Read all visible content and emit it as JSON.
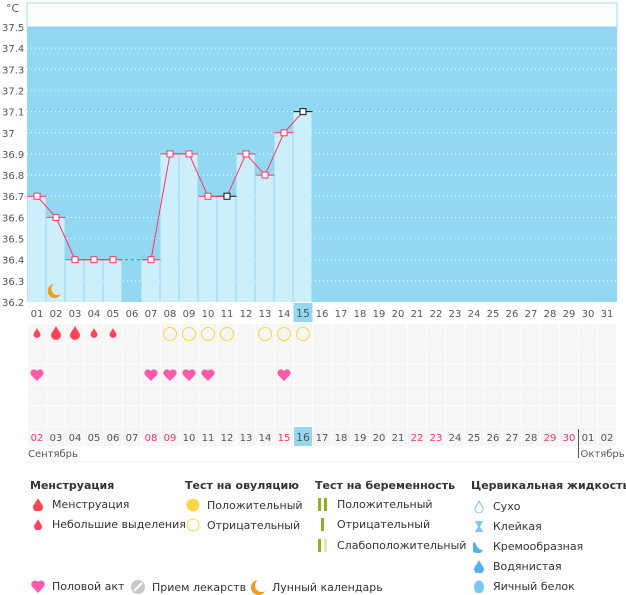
{
  "unit": "°C",
  "y_ticks": [
    "37.5",
    "37.4",
    "37.3",
    "37.2",
    "37.1",
    "37",
    "36.9",
    "36.8",
    "36.7",
    "36.6",
    "36.5",
    "36.4",
    "36.3",
    "36.2"
  ],
  "cycle_days": [
    "01",
    "02",
    "03",
    "04",
    "05",
    "06",
    "07",
    "08",
    "09",
    "10",
    "11",
    "12",
    "13",
    "14",
    "15",
    "16",
    "17",
    "18",
    "19",
    "20",
    "21",
    "22",
    "23",
    "24",
    "25",
    "26",
    "27",
    "28",
    "29",
    "30",
    "31"
  ],
  "current_cycle_day": "15",
  "temperatures": [
    36.7,
    36.6,
    36.4,
    36.4,
    36.4,
    null,
    36.4,
    36.9,
    36.9,
    36.7,
    36.7,
    36.9,
    36.8,
    37.0,
    37.1
  ],
  "black_markers_days": [
    11,
    15
  ],
  "moon_days": [
    2
  ],
  "menstruation": {
    "2": "heavy",
    "3": "heavy",
    "1": "light",
    "4": "light",
    "5": "light"
  },
  "ovulation_negative_days": [
    8,
    9,
    10,
    11,
    13,
    14,
    15
  ],
  "intercourse_days": [
    1,
    7,
    8,
    9,
    10,
    14
  ],
  "dates": [
    "02",
    "03",
    "04",
    "05",
    "06",
    "07",
    "08",
    "09",
    "10",
    "11",
    "12",
    "13",
    "14",
    "15",
    "16",
    "17",
    "18",
    "19",
    "20",
    "21",
    "22",
    "23",
    "24",
    "25",
    "26",
    "27",
    "28",
    "29",
    "30",
    "01",
    "02"
  ],
  "weekend_date_indexes": [
    0,
    6,
    7,
    13,
    20,
    21,
    27,
    28
  ],
  "today_date": "16",
  "months": [
    "Сентябрь",
    "Октябрь"
  ],
  "colors": {
    "plot_bg": "#93d8f2",
    "bar": "#cdeefb",
    "line": "#ff3366",
    "blood": "#ff4455",
    "heart": "#ff5aaa",
    "ovulation": "#ffd23f",
    "test_green": "#8cb31f"
  },
  "legend": {
    "menstruation": {
      "title": "Менструация",
      "items": [
        "Менструация",
        "Небольшие выделения"
      ]
    },
    "ovulation": {
      "title": "Тест на овуляцию",
      "items": [
        "Положительный",
        "Отрицательный"
      ]
    },
    "pregnancy": {
      "title": "Тест на беременность",
      "items": [
        "Положительный",
        "Отрицательный",
        "Слабоположительный"
      ]
    },
    "cervical": {
      "title": "Цервикальная жидкость",
      "items": [
        "Сухо",
        "Клейкая",
        "Кремообразная",
        "Водянистая",
        "Яичный белок"
      ]
    },
    "other": [
      "Половой акт",
      "Прием лекарств",
      "Лунный календарь"
    ]
  }
}
